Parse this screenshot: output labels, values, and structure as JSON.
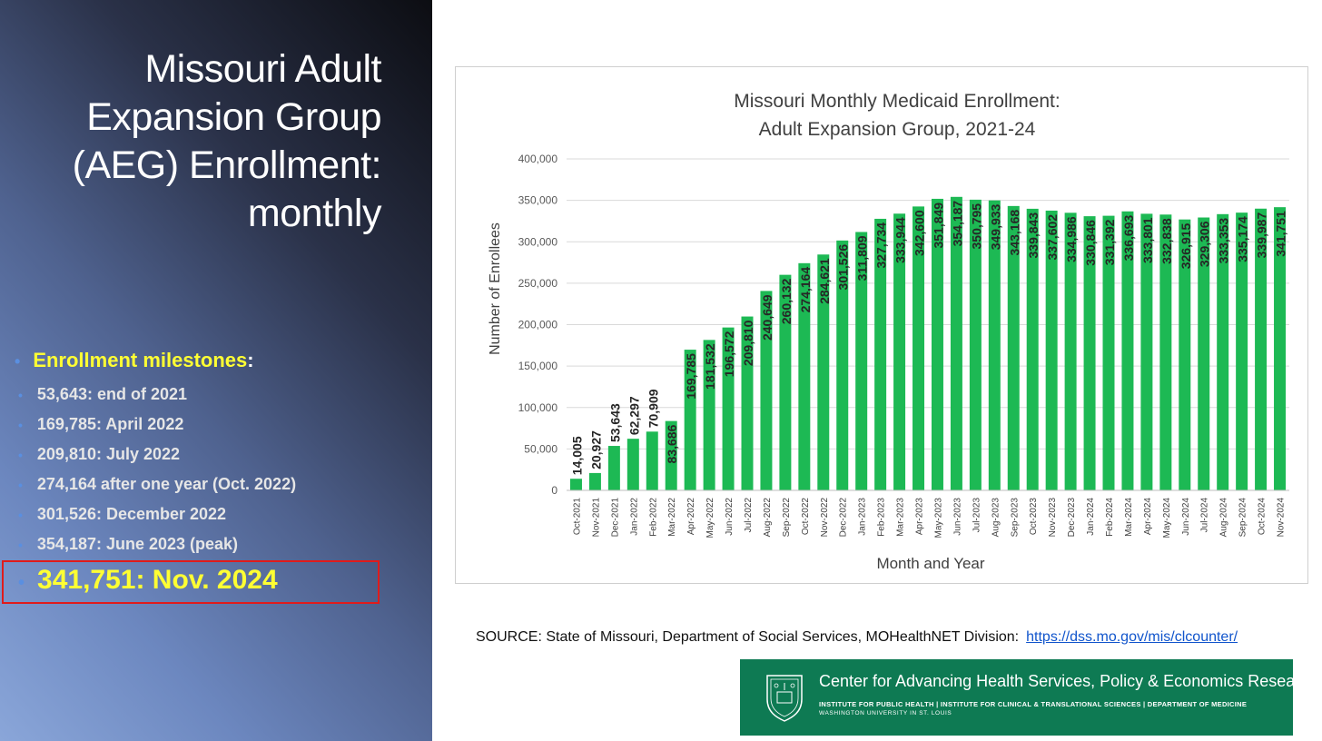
{
  "left_title": "Missouri Adult\nExpansion Group\n(AEG) Enrollment:\nmonthly",
  "milestones": {
    "header": "Enrollment milestones",
    "header_suffix": ":",
    "items": [
      "53,643: end of 2021",
      "169,785: April 2022",
      "209,810: July 2022",
      "274,164 after one year (Oct. 2022)",
      "301,526: December 2022",
      "354,187: June 2023 (peak)"
    ],
    "highlight": "341,751: Nov. 2024"
  },
  "chart_data": {
    "type": "bar",
    "title": "Missouri Monthly Medicaid Enrollment:",
    "subtitle": "Adult Expansion Group, 2021-24",
    "xlabel": "Month and Year",
    "ylabel": "Number of Enrollees",
    "ylim": [
      0,
      400000
    ],
    "yticks": [
      0,
      50000,
      100000,
      150000,
      200000,
      250000,
      300000,
      350000,
      400000
    ],
    "ytick_labels": [
      "0",
      "50,000",
      "100,000",
      "150,000",
      "200,000",
      "250,000",
      "300,000",
      "350,000",
      "400,000"
    ],
    "grid": true,
    "bar_color": "#1db954",
    "categories": [
      "Oct-2021",
      "Nov-2021",
      "Dec-2021",
      "Jan-2022",
      "Feb-2022",
      "Mar-2022",
      "Apr-2022",
      "May-2022",
      "Jun-2022",
      "Jul-2022",
      "Aug-2022",
      "Sep-2022",
      "Oct-2022",
      "Nov-2022",
      "Dec-2022",
      "Jan-2023",
      "Feb-2023",
      "Mar-2023",
      "Apr-2023",
      "May-2023",
      "Jun-2023",
      "Jul-2023",
      "Aug-2023",
      "Sep-2023",
      "Oct-2023",
      "Nov-2023",
      "Dec-2023",
      "Jan-2024",
      "Feb-2024",
      "Mar-2024",
      "Apr-2024",
      "May-2024",
      "Jun-2024",
      "Jul-2024",
      "Aug-2024",
      "Sep-2024",
      "Oct-2024",
      "Nov-2024"
    ],
    "values": [
      14005,
      20927,
      53643,
      62297,
      70909,
      83686,
      169785,
      181532,
      196572,
      209810,
      240649,
      260132,
      274164,
      284621,
      301526,
      311809,
      327734,
      333944,
      342600,
      351849,
      354187,
      350795,
      349933,
      343168,
      339843,
      337602,
      334986,
      330846,
      331392,
      336693,
      333801,
      332838,
      326915,
      329306,
      333353,
      335174,
      339987,
      341751
    ],
    "labels": [
      "14,005",
      "20,927",
      "53,643",
      "62,297",
      "70,909",
      "83,686",
      "169,785",
      "181,532",
      "196,572",
      "209,810",
      "240,649",
      "260,132",
      "274,164",
      "284,621",
      "301,526",
      "311,809",
      "327,734",
      "333,944",
      "342,600",
      "351,849",
      "354,187",
      "350,795",
      "349,933",
      "343,168",
      "339,843",
      "337,602",
      "334,986",
      "330,846",
      "331,392",
      "336,693",
      "333,801",
      "332,838",
      "326,915",
      "329,306",
      "333,353",
      "335,174",
      "339,987",
      "341,751"
    ]
  },
  "source": {
    "text": "SOURCE: State of Missouri, Department of Social Services, MOHealthNET Division:",
    "link": "https://dss.mo.gov/mis/clcounter/"
  },
  "footer": {
    "title": "Center for Advancing Health Services, Policy & Economics Research",
    "subtitle": "INSTITUTE FOR PUBLIC HEALTH | INSTITUTE FOR CLINICAL & TRANSLATIONAL SCIENCES | DEPARTMENT OF MEDICINE",
    "subtitle2": "WASHINGTON UNIVERSITY IN ST. LOUIS",
    "seal_icon": "university-seal-icon",
    "bg_color": "#0e7a53"
  }
}
